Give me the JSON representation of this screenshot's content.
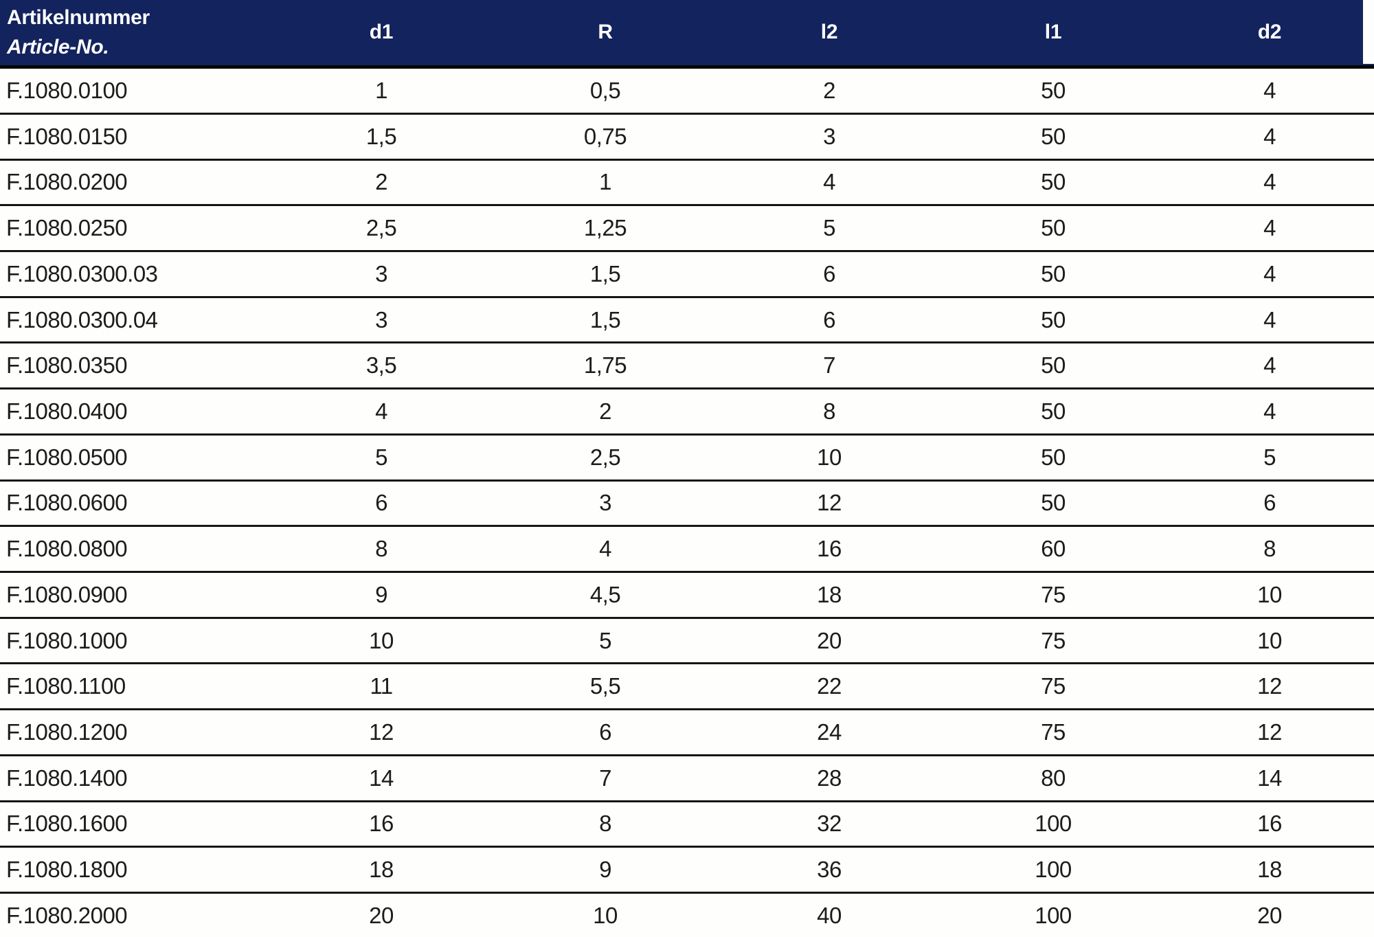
{
  "colors": {
    "header_background": "#13235d",
    "header_text": "#ffffff",
    "row_separator": "#151515",
    "body_text": "#1c1c1c",
    "page_background": "#fdfdfb"
  },
  "table": {
    "header": {
      "article_label_de": "Artikelnummer",
      "article_label_en": "Article-No.",
      "columns": [
        "d1",
        "R",
        "l2",
        "l1",
        "d2"
      ]
    },
    "rows": [
      {
        "article": "F.1080.0100",
        "d1": "1",
        "R": "0,5",
        "l2": "2",
        "l1": "50",
        "d2": "4"
      },
      {
        "article": "F.1080.0150",
        "d1": "1,5",
        "R": "0,75",
        "l2": "3",
        "l1": "50",
        "d2": "4"
      },
      {
        "article": "F.1080.0200",
        "d1": "2",
        "R": "1",
        "l2": "4",
        "l1": "50",
        "d2": "4"
      },
      {
        "article": "F.1080.0250",
        "d1": "2,5",
        "R": "1,25",
        "l2": "5",
        "l1": "50",
        "d2": "4"
      },
      {
        "article": "F.1080.0300.03",
        "d1": "3",
        "R": "1,5",
        "l2": "6",
        "l1": "50",
        "d2": "4"
      },
      {
        "article": "F.1080.0300.04",
        "d1": "3",
        "R": "1,5",
        "l2": "6",
        "l1": "50",
        "d2": "4"
      },
      {
        "article": "F.1080.0350",
        "d1": "3,5",
        "R": "1,75",
        "l2": "7",
        "l1": "50",
        "d2": "4"
      },
      {
        "article": "F.1080.0400",
        "d1": "4",
        "R": "2",
        "l2": "8",
        "l1": "50",
        "d2": "4"
      },
      {
        "article": "F.1080.0500",
        "d1": "5",
        "R": "2,5",
        "l2": "10",
        "l1": "50",
        "d2": "5"
      },
      {
        "article": "F.1080.0600",
        "d1": "6",
        "R": "3",
        "l2": "12",
        "l1": "50",
        "d2": "6"
      },
      {
        "article": "F.1080.0800",
        "d1": "8",
        "R": "4",
        "l2": "16",
        "l1": "60",
        "d2": "8"
      },
      {
        "article": "F.1080.0900",
        "d1": "9",
        "R": "4,5",
        "l2": "18",
        "l1": "75",
        "d2": "10"
      },
      {
        "article": "F.1080.1000",
        "d1": "10",
        "R": "5",
        "l2": "20",
        "l1": "75",
        "d2": "10"
      },
      {
        "article": "F.1080.1100",
        "d1": "11",
        "R": "5,5",
        "l2": "22",
        "l1": "75",
        "d2": "12"
      },
      {
        "article": "F.1080.1200",
        "d1": "12",
        "R": "6",
        "l2": "24",
        "l1": "75",
        "d2": "12"
      },
      {
        "article": "F.1080.1400",
        "d1": "14",
        "R": "7",
        "l2": "28",
        "l1": "80",
        "d2": "14"
      },
      {
        "article": "F.1080.1600",
        "d1": "16",
        "R": "8",
        "l2": "32",
        "l1": "100",
        "d2": "16"
      },
      {
        "article": "F.1080.1800",
        "d1": "18",
        "R": "9",
        "l2": "36",
        "l1": "100",
        "d2": "18"
      },
      {
        "article": "F.1080.2000",
        "d1": "20",
        "R": "10",
        "l2": "40",
        "l1": "100",
        "d2": "20"
      }
    ]
  }
}
